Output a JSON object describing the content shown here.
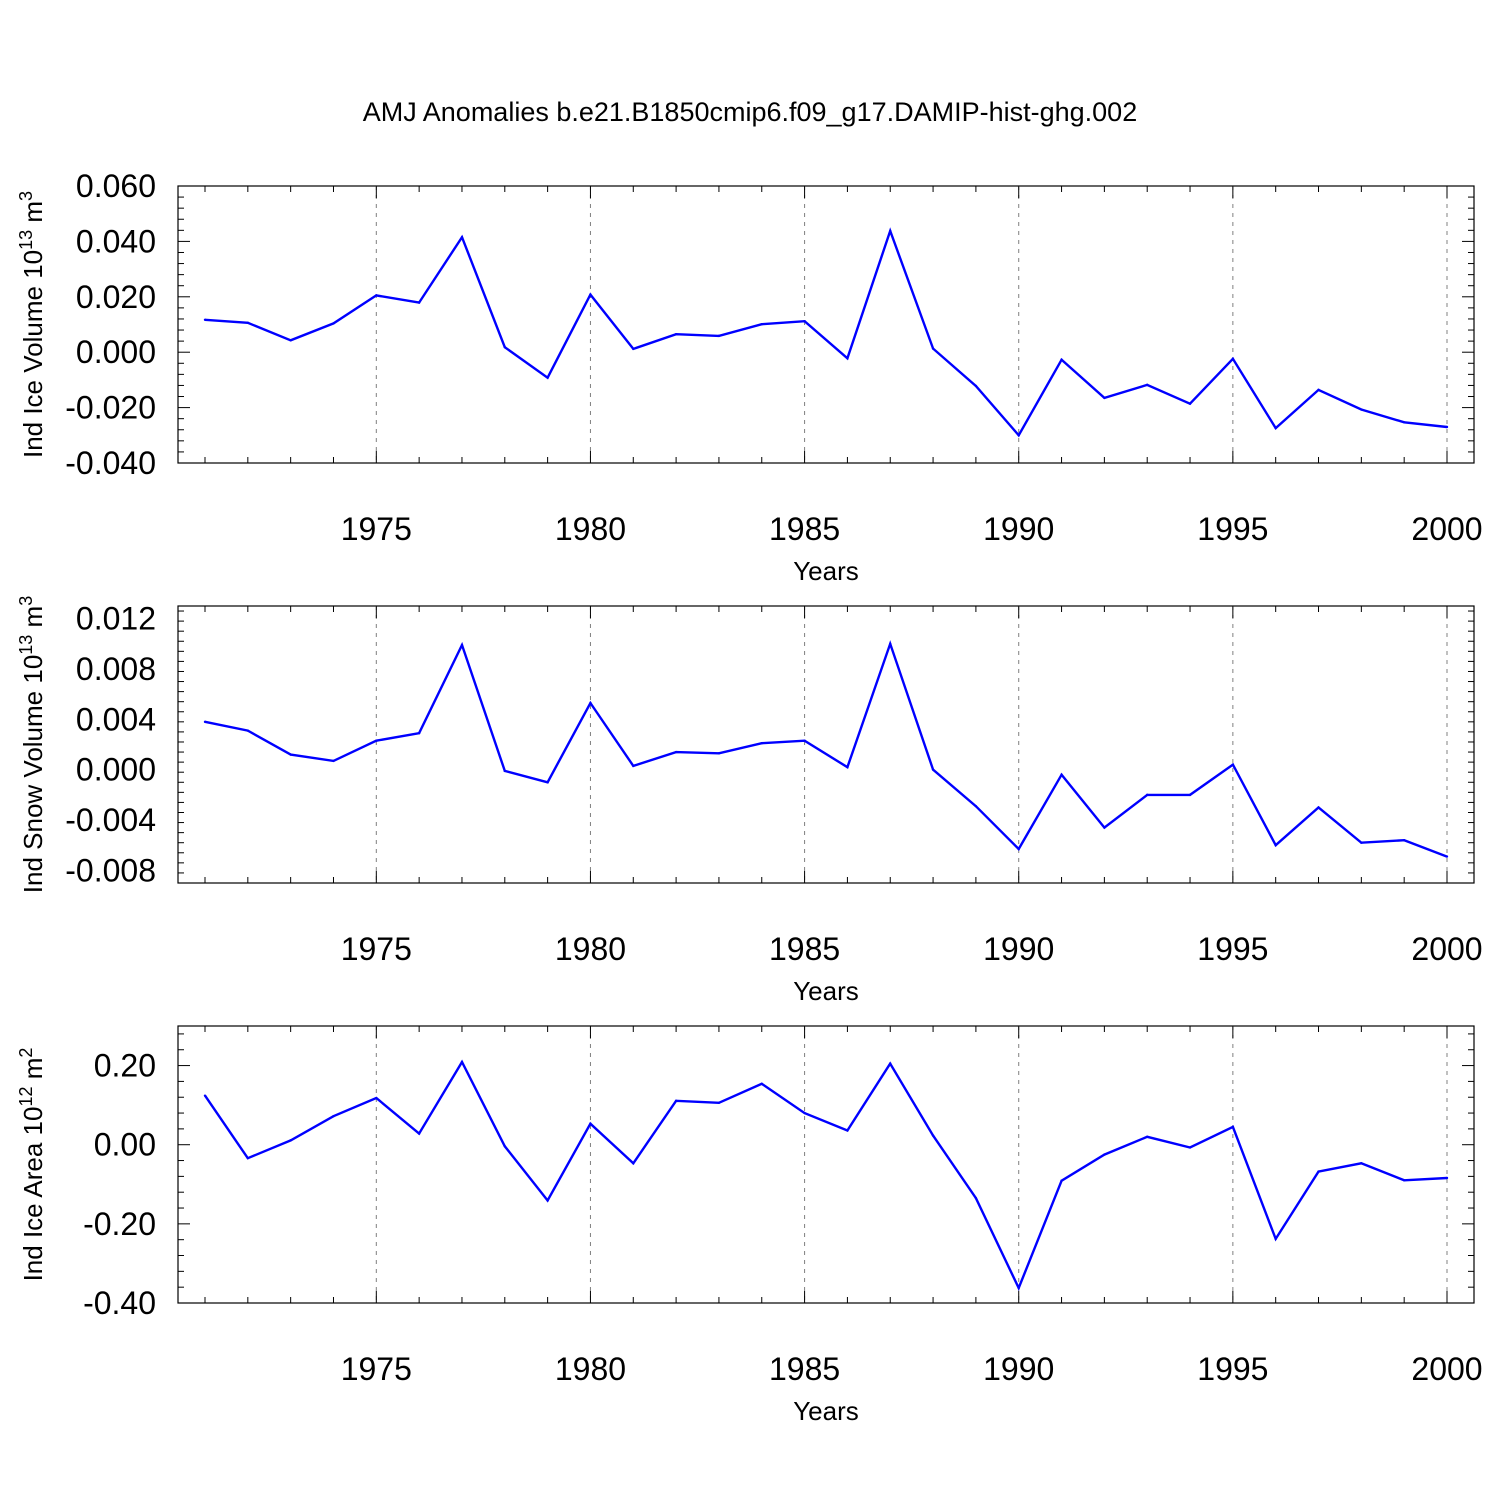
{
  "title": "AMJ Anomalies b.e21.B1850cmip6.f09_g17.DAMIP-hist-ghg.002",
  "colors": {
    "line": "#0000ff",
    "axis": "#000000",
    "grid": "#808080"
  },
  "chart_data": [
    {
      "type": "line",
      "xlabel": "Years",
      "ylabel": "Ind Ice Volume 10",
      "ylabel_exp": "13",
      "ylabel_unit": " m",
      "ylabel_unit_exp": "3",
      "xlim": [
        1971,
        2000
      ],
      "ylim": [
        -0.04,
        0.06
      ],
      "yticks": [
        -0.04,
        -0.02,
        0.0,
        0.02,
        0.04,
        0.06
      ],
      "ytick_labels": [
        "-0.040",
        "-0.020",
        "0.000",
        "0.020",
        "0.040",
        "0.060"
      ],
      "xticks": [
        1975,
        1980,
        1985,
        1990,
        1995,
        2000
      ],
      "xtick_labels": [
        "1975",
        "1980",
        "1985",
        "1990",
        "1995",
        "2000"
      ],
      "grid": "dashed vertical at major x ticks",
      "x": [
        1971,
        1972,
        1973,
        1974,
        1975,
        1976,
        1977,
        1978,
        1979,
        1980,
        1981,
        1982,
        1983,
        1984,
        1985,
        1986,
        1987,
        1988,
        1989,
        1990,
        1991,
        1992,
        1993,
        1994,
        1995,
        1996,
        1997,
        1998,
        1999,
        2000
      ],
      "series": [
        {
          "values": [
            0.0117,
            0.0106,
            0.0043,
            0.0104,
            0.0205,
            0.0179,
            0.0415,
            0.0018,
            -0.0092,
            0.0208,
            0.0012,
            0.0065,
            0.0059,
            0.0101,
            0.0112,
            -0.0022,
            0.0438,
            0.0013,
            -0.0122,
            -0.03,
            -0.0027,
            -0.0165,
            -0.0118,
            -0.0186,
            -0.0024,
            -0.0274,
            -0.0136,
            -0.0207,
            -0.0253,
            -0.027
          ]
        }
      ]
    },
    {
      "type": "line",
      "xlabel": "Years",
      "ylabel": "Ind Snow Volume 10",
      "ylabel_exp": "13",
      "ylabel_unit": " m",
      "ylabel_unit_exp": "3",
      "xlim": [
        1971,
        2000
      ],
      "ylim": [
        -0.009,
        0.013
      ],
      "yticks": [
        -0.008,
        -0.004,
        0.0,
        0.004,
        0.008,
        0.012
      ],
      "ytick_labels": [
        "-0.008",
        "-0.004",
        "0.000",
        "0.004",
        "0.008",
        "0.012"
      ],
      "xticks": [
        1975,
        1980,
        1985,
        1990,
        1995,
        2000
      ],
      "xtick_labels": [
        "1975",
        "1980",
        "1985",
        "1990",
        "1995",
        "2000"
      ],
      "grid": "dashed vertical at major x ticks",
      "x": [
        1971,
        1972,
        1973,
        1974,
        1975,
        1976,
        1977,
        1978,
        1979,
        1980,
        1981,
        1982,
        1983,
        1984,
        1985,
        1986,
        1987,
        1988,
        1989,
        1990,
        1991,
        1992,
        1993,
        1994,
        1995,
        1996,
        1997,
        1998,
        1999,
        2000
      ],
      "series": [
        {
          "values": [
            0.0038,
            0.0031,
            0.0012,
            0.0007,
            0.0023,
            0.0029,
            0.0099,
            -0.0001,
            -0.001,
            0.0053,
            0.0003,
            0.0014,
            0.0013,
            0.0021,
            0.0023,
            0.0002,
            0.01,
            0.0,
            -0.0029,
            -0.0063,
            -0.0004,
            -0.0046,
            -0.002,
            -0.002,
            0.0004,
            -0.006,
            -0.003,
            -0.0058,
            -0.0056,
            -0.0069
          ]
        }
      ]
    },
    {
      "type": "line",
      "xlabel": "Years",
      "ylabel": "Ind Ice Area 10",
      "ylabel_exp": "12",
      "ylabel_unit": " m",
      "ylabel_unit_exp": "2",
      "xlim": [
        1971,
        2000
      ],
      "ylim": [
        -0.4,
        0.3
      ],
      "yticks": [
        -0.4,
        -0.2,
        0.0,
        0.2
      ],
      "ytick_labels": [
        "-0.40",
        "-0.20",
        "0.00",
        "0.20"
      ],
      "xticks": [
        1975,
        1980,
        1985,
        1990,
        1995,
        2000
      ],
      "xtick_labels": [
        "1975",
        "1980",
        "1985",
        "1990",
        "1995",
        "2000"
      ],
      "grid": "dashed vertical at major x ticks",
      "x": [
        1971,
        1972,
        1973,
        1974,
        1975,
        1976,
        1977,
        1978,
        1979,
        1980,
        1981,
        1982,
        1983,
        1984,
        1985,
        1986,
        1987,
        1988,
        1989,
        1990,
        1991,
        1992,
        1993,
        1994,
        1995,
        1996,
        1997,
        1998,
        1999,
        2000
      ],
      "series": [
        {
          "values": [
            0.124,
            -0.034,
            0.011,
            0.072,
            0.118,
            0.028,
            0.209,
            -0.004,
            -0.141,
            0.053,
            -0.047,
            0.111,
            0.106,
            0.154,
            0.08,
            0.036,
            0.205,
            0.023,
            -0.135,
            -0.362,
            -0.091,
            -0.025,
            0.02,
            -0.007,
            0.045,
            -0.238,
            -0.068,
            -0.047,
            -0.09,
            -0.084
          ]
        }
      ]
    }
  ]
}
